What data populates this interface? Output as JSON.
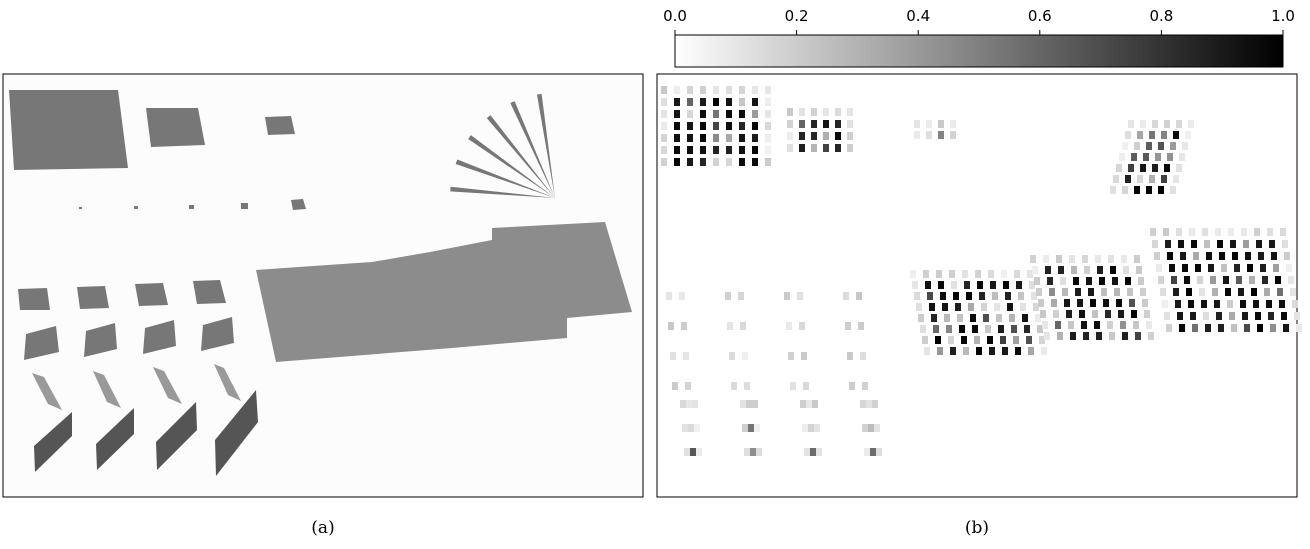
{
  "panels": [
    {
      "caption": "(a)"
    },
    {
      "caption": "(b)"
    }
  ],
  "colorbar": {
    "lim": [
      0,
      1
    ],
    "colors": [
      "#ffffff",
      "#000000"
    ],
    "ticks": [
      {
        "value": 0,
        "label": "0.0"
      },
      {
        "value": 0.2,
        "label": "0.2"
      },
      {
        "value": 0.4,
        "label": "0.4"
      },
      {
        "value": 0.6,
        "label": "0.6"
      },
      {
        "value": 0.8,
        "label": "0.8"
      },
      {
        "value": 1,
        "label": "1.0"
      }
    ]
  }
}
